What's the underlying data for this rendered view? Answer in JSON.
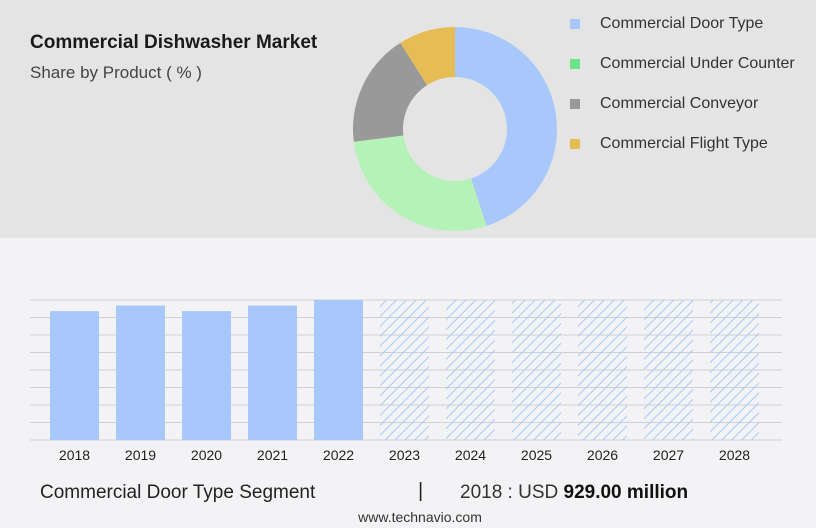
{
  "header": {
    "title": "Commercial Dishwasher Market",
    "subtitle": "Share by Product ( % )"
  },
  "colors": {
    "door": "#a8c8fc",
    "under": "#b5f2b8",
    "conveyor": "#999999",
    "flight": "#e6bd55",
    "legend_under": "#6be58a"
  },
  "chart_data": [
    {
      "type": "pie",
      "title": "Share by Product ( % )",
      "donut": true,
      "slices": [
        {
          "label": "Commercial Door Type",
          "value": 45
        },
        {
          "label": "Commercial Under Counter",
          "value": 28
        },
        {
          "label": "Commercial Conveyor",
          "value": 18
        },
        {
          "label": "Commercial Flight Type",
          "value": 9
        }
      ],
      "legend": "right"
    },
    {
      "type": "bar",
      "categories": [
        "2018",
        "2019",
        "2020",
        "2021",
        "2022",
        "2023",
        "2024",
        "2025",
        "2026",
        "2027",
        "2028"
      ],
      "values": [
        929,
        969,
        929,
        969,
        1009,
        1009,
        1009,
        1009,
        1009,
        1009,
        1009
      ],
      "forecast_from": "2023",
      "ylim": [
        0,
        1009
      ],
      "grid": true
    }
  ],
  "footer": {
    "segment": "Commercial Door Type Segment",
    "divider": "|",
    "year_label": "2018 : USD",
    "value": "929.00 million",
    "source": "www.technavio.com"
  }
}
